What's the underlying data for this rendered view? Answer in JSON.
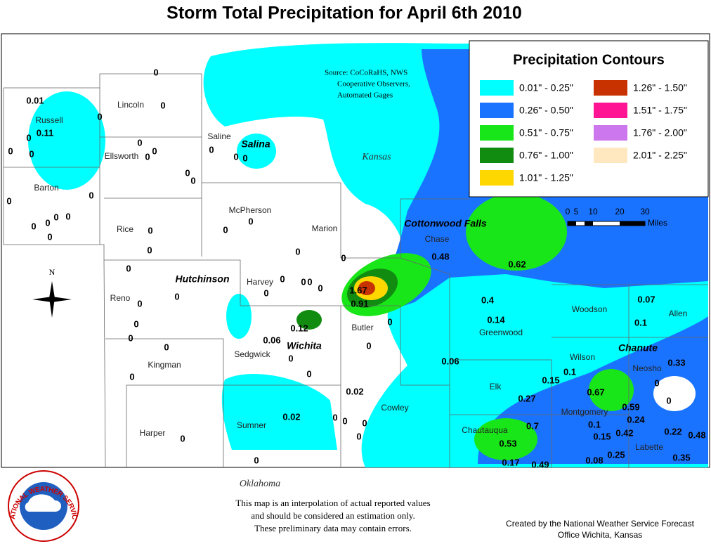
{
  "title": "Storm Total Precipitation for April 6th 2010",
  "source": [
    "Source: CoCoRaHS, NWS",
    "Cooperative Observers,",
    "Automated Gages"
  ],
  "legend": {
    "title": "Precipitation Contours",
    "items": [
      {
        "label": "0.01\" - 0.25\"",
        "color": "#00ffff"
      },
      {
        "label": "0.26\" - 0.50\"",
        "color": "#1a73ff"
      },
      {
        "label": "0.51\" - 0.75\"",
        "color": "#19e619"
      },
      {
        "label": "0.76\" - 1.00\"",
        "color": "#118c11"
      },
      {
        "label": "1.01\" - 1.25\"",
        "color": "#ffd700"
      },
      {
        "label": "1.26\" - 1.50\"",
        "color": "#c83200"
      },
      {
        "label": "1.51\" - 1.75\"",
        "color": "#ff1493"
      },
      {
        "label": "1.76\" - 2.00\"",
        "color": "#cc77ee"
      },
      {
        "label": "2.01\" - 2.25\"",
        "color": "#ffe8c0"
      }
    ]
  },
  "scale": {
    "ticks": [
      "0",
      "5",
      "10",
      "20",
      "30"
    ],
    "unit": "Miles"
  },
  "north": "N",
  "state_labels": [
    "Kansas",
    "Oklahoma"
  ],
  "cities": [
    "Salina",
    "Hutchinson",
    "Wichita",
    "Cottonwood Falls",
    "Chanute"
  ],
  "counties": [
    "Russell",
    "Lincoln",
    "Ellsworth",
    "Saline",
    "Barton",
    "Rice",
    "McPherson",
    "Marion",
    "Chase",
    "Reno",
    "Harvey",
    "Butler",
    "Greenwood",
    "Woodson",
    "Allen",
    "Kingman",
    "Sedgwick",
    "Wilson",
    "Neosho",
    "Elk",
    "Cowley",
    "Montgomery",
    "Chautauqua",
    "Labette",
    "Harper",
    "Sumner"
  ],
  "stations": [
    "0",
    "0.01",
    "0.11",
    "0",
    "0",
    "0",
    "0",
    "0",
    "0",
    "0",
    "0",
    "0",
    "0",
    "0",
    "0",
    "0",
    "0",
    "0",
    "0",
    "0",
    "0",
    "0",
    "0",
    "0",
    "0",
    "0",
    "0",
    "0",
    "0",
    "0",
    "0",
    "0",
    "0",
    "0",
    "0",
    "0",
    "0",
    "0",
    "0",
    "0",
    "0",
    "1.67",
    "0.91",
    "0.12",
    "0.06",
    "0",
    "0",
    "0",
    "0",
    "0.48",
    "0.62",
    "0.4",
    "0.14",
    "0.07",
    "0.1",
    "0.33",
    "0",
    "0",
    "0.06",
    "0.1",
    "0.15",
    "0.27",
    "0.67",
    "0.59",
    "0.24",
    "0.1",
    "0.15",
    "0.42",
    "0.22",
    "0.48",
    "0.7",
    "0.53",
    "0.17",
    "0.49",
    "0.08",
    "0.25",
    "0.35",
    "0.02",
    "0.02",
    "0",
    "0",
    "0",
    "0",
    "0",
    "0"
  ],
  "disclaimer": [
    "This map is an interpolation of actual reported values",
    "and should be considered an estimation only.",
    "These preliminary data may contain errors."
  ],
  "credit": [
    "Created by the National Weather Service Forecast",
    "Office Wichita, Kansas"
  ],
  "logo": "NATIONAL WEATHER SERVICE"
}
